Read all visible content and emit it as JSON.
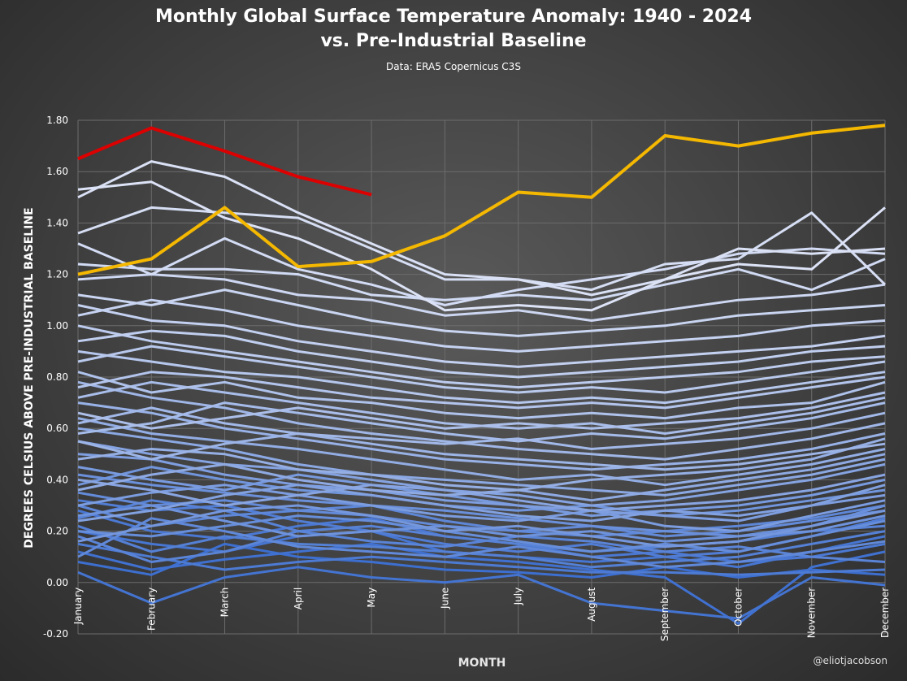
{
  "chart_data": {
    "type": "line",
    "title_line1": "Monthly Global Surface Temperature Anomaly: 1940 - 2024",
    "title_line2": "vs. Pre-Industrial Baseline",
    "subtitle": "Data: ERA5 Copernicus C3S",
    "xlabel": "MONTH",
    "ylabel": "DEGREES CELSIUS ABOVE PRE-INDUSTRIAL  BASELINE",
    "credit": "@eliotjacobson",
    "categories": [
      "January",
      "February",
      "March",
      "April",
      "May",
      "June",
      "July",
      "August",
      "September",
      "October",
      "November",
      "December"
    ],
    "ylim": [
      -0.2,
      1.8
    ],
    "yticks": [
      "-0.20",
      "0.00",
      "0.20",
      "0.40",
      "0.60",
      "0.80",
      "1.00",
      "1.20",
      "1.40",
      "1.60",
      "1.80"
    ],
    "grid": true,
    "legend": "none",
    "colors": {
      "cold": "#3d6fd0",
      "warm": "#dde3f6",
      "year_2023": "#f5b800",
      "year_2024": "#dd0000",
      "grid": "#6c6c6c"
    },
    "series": [
      {
        "values": [
          0.08,
          0.03,
          0.15,
          0.1,
          0.08,
          0.05,
          0.04,
          0.02,
          0.06,
          0.02,
          0.05,
          0.03
        ]
      },
      {
        "values": [
          0.12,
          0.05,
          0.09,
          0.12,
          0.15,
          0.1,
          0.08,
          0.05,
          0.02,
          -0.16,
          0.06,
          0.12
        ]
      },
      {
        "values": [
          0.04,
          -0.08,
          0.02,
          0.06,
          0.02,
          0.0,
          0.03,
          -0.08,
          -0.11,
          -0.14,
          0.02,
          -0.01
        ]
      },
      {
        "values": [
          0.2,
          0.15,
          0.12,
          0.18,
          0.2,
          0.12,
          0.1,
          0.08,
          0.1,
          0.06,
          0.12,
          0.18
        ]
      },
      {
        "values": [
          0.28,
          0.2,
          0.17,
          0.22,
          0.25,
          0.18,
          0.15,
          0.1,
          0.12,
          0.08,
          0.1,
          0.15
        ]
      },
      {
        "values": [
          0.15,
          0.1,
          0.05,
          0.08,
          0.1,
          0.08,
          0.06,
          0.04,
          0.04,
          0.03,
          0.04,
          0.05
        ]
      },
      {
        "values": [
          0.32,
          0.28,
          0.3,
          0.24,
          0.2,
          0.15,
          0.12,
          0.15,
          0.1,
          0.12,
          0.18,
          0.25
        ]
      },
      {
        "values": [
          0.22,
          0.12,
          0.18,
          0.15,
          0.14,
          0.12,
          0.1,
          0.06,
          0.08,
          0.1,
          0.15,
          0.2
        ]
      },
      {
        "values": [
          0.25,
          0.32,
          0.28,
          0.2,
          0.22,
          0.18,
          0.15,
          0.12,
          0.14,
          0.16,
          0.2,
          0.22
        ]
      },
      {
        "values": [
          0.18,
          0.08,
          0.12,
          0.2,
          0.16,
          0.14,
          0.18,
          0.16,
          0.12,
          0.14,
          0.1,
          0.08
        ]
      },
      {
        "values": [
          0.3,
          0.22,
          0.26,
          0.28,
          0.3,
          0.24,
          0.2,
          0.18,
          0.2,
          0.22,
          0.25,
          0.3
        ]
      },
      {
        "values": [
          0.1,
          0.25,
          0.2,
          0.14,
          0.12,
          0.1,
          0.14,
          0.1,
          0.06,
          0.08,
          0.12,
          0.16
        ]
      },
      {
        "values": [
          0.35,
          0.3,
          0.32,
          0.28,
          0.26,
          0.22,
          0.2,
          0.22,
          0.18,
          0.2,
          0.24,
          0.28
        ]
      },
      {
        "values": [
          0.2,
          0.18,
          0.22,
          0.26,
          0.24,
          0.2,
          0.16,
          0.12,
          0.15,
          0.12,
          0.18,
          0.24
        ]
      },
      {
        "values": [
          0.42,
          0.38,
          0.35,
          0.32,
          0.3,
          0.28,
          0.25,
          0.22,
          0.2,
          0.18,
          0.22,
          0.3
        ]
      },
      {
        "values": [
          0.26,
          0.3,
          0.24,
          0.18,
          0.2,
          0.22,
          0.18,
          0.2,
          0.16,
          0.18,
          0.2,
          0.26
        ]
      },
      {
        "values": [
          0.38,
          0.45,
          0.4,
          0.36,
          0.34,
          0.3,
          0.28,
          0.3,
          0.26,
          0.28,
          0.32,
          0.36
        ]
      },
      {
        "values": [
          0.16,
          0.22,
          0.28,
          0.3,
          0.26,
          0.2,
          0.22,
          0.18,
          0.14,
          0.16,
          0.22,
          0.28
        ]
      },
      {
        "values": [
          0.45,
          0.4,
          0.36,
          0.42,
          0.38,
          0.34,
          0.3,
          0.26,
          0.28,
          0.3,
          0.34,
          0.4
        ]
      },
      {
        "values": [
          0.3,
          0.35,
          0.38,
          0.34,
          0.3,
          0.26,
          0.24,
          0.28,
          0.22,
          0.2,
          0.26,
          0.32
        ]
      },
      {
        "values": [
          0.5,
          0.48,
          0.42,
          0.38,
          0.36,
          0.32,
          0.3,
          0.28,
          0.26,
          0.24,
          0.3,
          0.34
        ]
      },
      {
        "values": [
          0.24,
          0.28,
          0.34,
          0.38,
          0.34,
          0.3,
          0.26,
          0.24,
          0.28,
          0.26,
          0.3,
          0.38
        ]
      },
      {
        "values": [
          0.55,
          0.5,
          0.46,
          0.44,
          0.4,
          0.36,
          0.34,
          0.3,
          0.32,
          0.36,
          0.4,
          0.46
        ]
      },
      {
        "values": [
          0.4,
          0.36,
          0.3,
          0.34,
          0.38,
          0.36,
          0.32,
          0.28,
          0.3,
          0.32,
          0.36,
          0.42
        ]
      },
      {
        "values": [
          0.6,
          0.56,
          0.52,
          0.46,
          0.42,
          0.4,
          0.38,
          0.36,
          0.34,
          0.38,
          0.42,
          0.48
        ]
      },
      {
        "values": [
          0.36,
          0.42,
          0.46,
          0.4,
          0.36,
          0.34,
          0.36,
          0.32,
          0.36,
          0.4,
          0.44,
          0.5
        ]
      },
      {
        "values": [
          0.64,
          0.58,
          0.55,
          0.52,
          0.48,
          0.44,
          0.4,
          0.42,
          0.38,
          0.42,
          0.46,
          0.52
        ]
      },
      {
        "values": [
          0.48,
          0.52,
          0.5,
          0.44,
          0.42,
          0.38,
          0.36,
          0.4,
          0.42,
          0.44,
          0.48,
          0.56
        ]
      },
      {
        "values": [
          0.7,
          0.66,
          0.6,
          0.56,
          0.52,
          0.48,
          0.46,
          0.44,
          0.46,
          0.48,
          0.52,
          0.58
        ]
      },
      {
        "values": [
          0.55,
          0.48,
          0.54,
          0.58,
          0.54,
          0.5,
          0.48,
          0.46,
          0.44,
          0.46,
          0.5,
          0.54
        ]
      },
      {
        "values": [
          0.78,
          0.72,
          0.68,
          0.62,
          0.58,
          0.55,
          0.52,
          0.5,
          0.48,
          0.52,
          0.56,
          0.62
        ]
      },
      {
        "values": [
          0.62,
          0.68,
          0.62,
          0.58,
          0.56,
          0.54,
          0.56,
          0.52,
          0.54,
          0.56,
          0.6,
          0.66
        ]
      },
      {
        "values": [
          0.58,
          0.62,
          0.7,
          0.66,
          0.62,
          0.58,
          0.55,
          0.58,
          0.56,
          0.6,
          0.64,
          0.7
        ]
      },
      {
        "values": [
          0.72,
          0.78,
          0.74,
          0.7,
          0.66,
          0.62,
          0.6,
          0.62,
          0.58,
          0.62,
          0.66,
          0.72
        ]
      },
      {
        "values": [
          0.66,
          0.6,
          0.64,
          0.68,
          0.64,
          0.6,
          0.62,
          0.6,
          0.62,
          0.64,
          0.68,
          0.74
        ]
      },
      {
        "values": [
          0.82,
          0.74,
          0.78,
          0.72,
          0.7,
          0.66,
          0.64,
          0.66,
          0.64,
          0.68,
          0.7,
          0.78
        ]
      },
      {
        "values": [
          0.76,
          0.82,
          0.8,
          0.76,
          0.72,
          0.7,
          0.68,
          0.7,
          0.68,
          0.72,
          0.76,
          0.8
        ]
      },
      {
        "values": [
          0.9,
          0.86,
          0.82,
          0.8,
          0.76,
          0.72,
          0.7,
          0.72,
          0.7,
          0.74,
          0.78,
          0.82
        ]
      },
      {
        "values": [
          0.86,
          0.92,
          0.88,
          0.84,
          0.8,
          0.76,
          0.74,
          0.76,
          0.74,
          0.78,
          0.82,
          0.86
        ]
      },
      {
        "values": [
          1.0,
          0.94,
          0.9,
          0.86,
          0.82,
          0.78,
          0.76,
          0.78,
          0.8,
          0.82,
          0.86,
          0.88
        ]
      },
      {
        "values": [
          0.94,
          0.98,
          0.96,
          0.9,
          0.86,
          0.82,
          0.8,
          0.82,
          0.84,
          0.86,
          0.9,
          0.92
        ]
      },
      {
        "values": [
          1.08,
          1.02,
          1.0,
          0.94,
          0.9,
          0.86,
          0.84,
          0.86,
          0.88,
          0.9,
          0.92,
          0.96
        ]
      },
      {
        "values": [
          1.04,
          1.1,
          1.06,
          1.0,
          0.96,
          0.92,
          0.9,
          0.92,
          0.94,
          0.96,
          1.0,
          1.02
        ]
      },
      {
        "values": [
          1.12,
          1.08,
          1.14,
          1.08,
          1.02,
          0.98,
          0.96,
          0.98,
          1.0,
          1.04,
          1.06,
          1.08
        ]
      },
      {
        "values": [
          1.18,
          1.2,
          1.18,
          1.12,
          1.1,
          1.04,
          1.06,
          1.02,
          1.06,
          1.1,
          1.12,
          1.16
        ]
      },
      {
        "values": [
          1.24,
          1.22,
          1.22,
          1.2,
          1.12,
          1.1,
          1.12,
          1.1,
          1.16,
          1.22,
          1.14,
          1.26
        ]
      },
      {
        "values": [
          1.32,
          1.2,
          1.34,
          1.22,
          1.16,
          1.08,
          1.14,
          1.18,
          1.22,
          1.28,
          1.3,
          1.28
        ]
      },
      {
        "values": [
          1.36,
          1.46,
          1.44,
          1.42,
          1.3,
          1.18,
          1.18,
          1.14,
          1.24,
          1.26,
          1.44,
          1.16
        ]
      },
      {
        "values": [
          1.5,
          1.64,
          1.58,
          1.44,
          1.32,
          1.2,
          1.18,
          1.12,
          1.18,
          1.3,
          1.28,
          1.3
        ]
      },
      {
        "values": [
          1.53,
          1.56,
          1.42,
          1.34,
          1.22,
          1.06,
          1.08,
          1.06,
          1.18,
          1.24,
          1.22,
          1.46
        ]
      }
    ],
    "highlight_series": [
      {
        "values": [
          1.2,
          1.26,
          1.46,
          1.23,
          1.25,
          1.35,
          1.52,
          1.5,
          1.74,
          1.7,
          1.75,
          1.78
        ]
      },
      {
        "values": [
          1.65,
          1.77,
          1.68,
          1.58,
          1.51
        ]
      }
    ]
  }
}
